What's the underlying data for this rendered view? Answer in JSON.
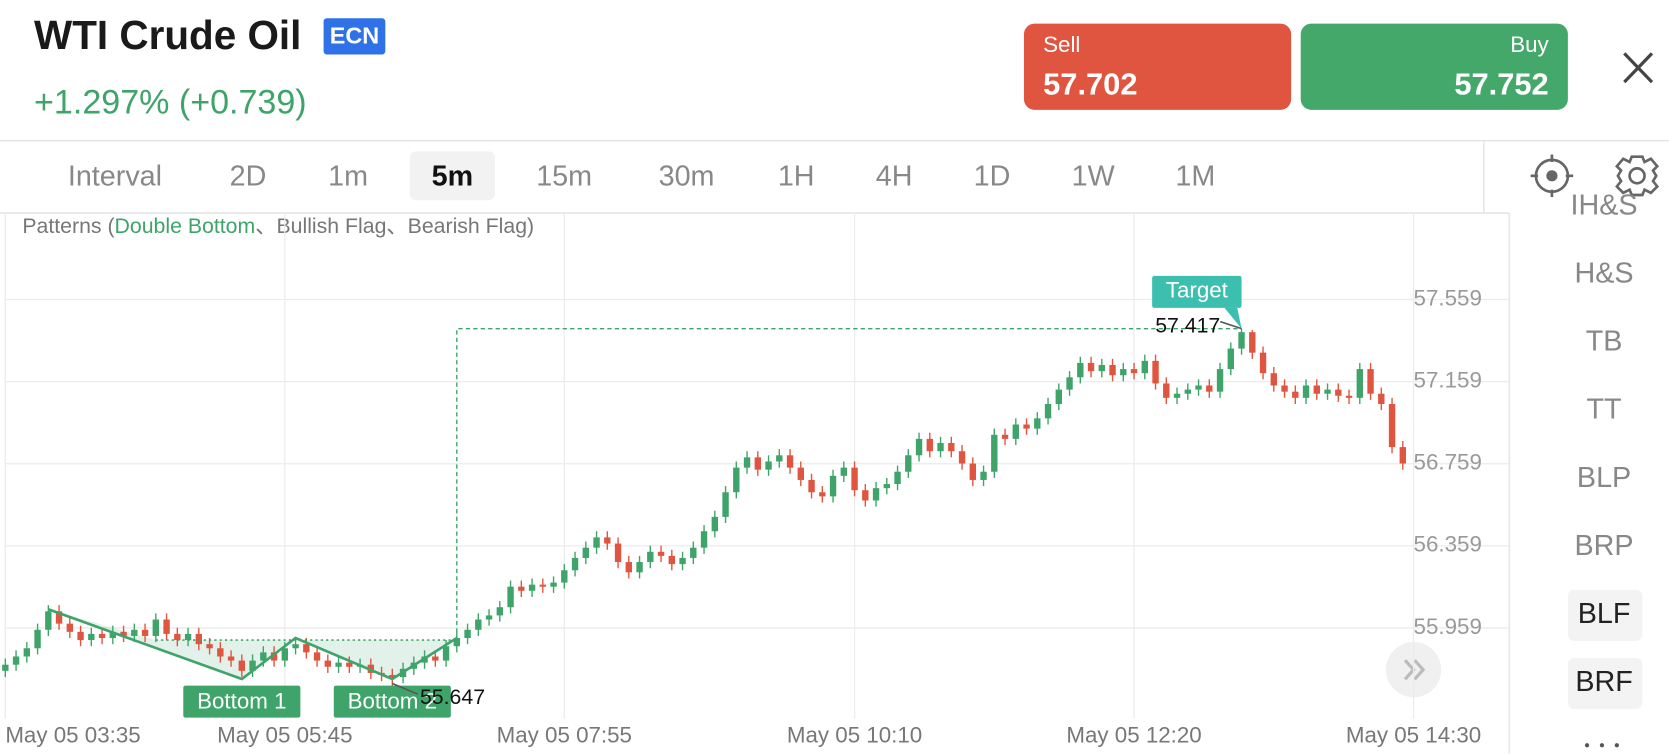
{
  "header": {
    "title": "WTI Crude Oil",
    "badge": "ECN",
    "change": "+1.297% (+0.739)",
    "sell": {
      "label": "Sell",
      "price": "57.702"
    },
    "buy": {
      "label": "Buy",
      "price": "57.752"
    }
  },
  "intervals": {
    "items": [
      "Interval",
      "2D",
      "1m",
      "5m",
      "15m",
      "30m",
      "1H",
      "4H",
      "1D",
      "1W",
      "1M"
    ],
    "active_index": 3
  },
  "pattern_menu": {
    "items": [
      "IH&S",
      "H&S",
      "TB",
      "TT",
      "BLP",
      "BRP",
      "BLF",
      "BRF"
    ],
    "highlighted": [
      6,
      7
    ]
  },
  "chart_data": {
    "type": "candlestick",
    "legend": [
      "Patterns (",
      "Double Bottom",
      "、Bullish Flag、Bearish Flag)"
    ],
    "open": [
      55.75,
      55.78,
      55.82,
      55.86,
      55.95,
      56.04,
      55.98,
      55.94,
      55.9,
      55.93,
      55.91,
      55.94,
      55.92,
      55.95,
      55.92,
      56.0,
      55.93,
      55.9,
      55.93,
      55.88,
      55.86,
      55.82,
      55.8,
      55.75,
      55.8,
      55.84,
      55.8,
      55.86,
      55.88,
      55.84,
      55.8,
      55.77,
      55.79,
      55.77,
      55.78,
      55.74,
      55.73,
      55.72,
      55.76,
      55.79,
      55.82,
      55.8,
      55.87,
      55.91,
      55.95,
      56.0,
      56.02,
      56.06,
      56.16,
      56.14,
      56.17,
      56.16,
      56.18,
      56.24,
      56.3,
      56.35,
      56.4,
      56.37,
      56.28,
      56.23,
      56.28,
      56.33,
      56.31,
      56.27,
      56.3,
      56.35,
      56.43,
      56.5,
      56.62,
      56.74,
      56.79,
      56.73,
      56.77,
      56.8,
      56.74,
      56.68,
      56.62,
      56.6,
      56.7,
      56.74,
      56.63,
      56.58,
      56.64,
      56.66,
      56.72,
      56.8,
      56.88,
      56.82,
      56.86,
      56.82,
      56.76,
      56.68,
      56.72,
      56.9,
      56.88,
      56.95,
      56.93,
      56.98,
      57.05,
      57.12,
      57.18,
      57.25,
      57.21,
      57.24,
      57.19,
      57.22,
      57.2,
      57.26,
      57.15,
      57.08,
      57.1,
      57.12,
      57.14,
      57.11,
      57.22,
      57.32,
      57.4,
      57.3,
      57.2,
      57.14,
      57.11,
      57.08,
      57.14,
      57.1,
      57.12,
      57.09,
      57.08,
      57.22,
      57.1,
      57.05,
      56.84
    ],
    "high": [
      55.81,
      55.85,
      55.89,
      55.98,
      56.07,
      56.07,
      56.01,
      55.97,
      55.96,
      55.96,
      55.97,
      55.97,
      55.98,
      55.98,
      56.03,
      56.03,
      55.96,
      55.96,
      55.96,
      55.91,
      55.89,
      55.85,
      55.83,
      55.83,
      55.87,
      55.87,
      55.89,
      55.91,
      55.91,
      55.87,
      55.83,
      55.82,
      55.82,
      55.81,
      55.81,
      55.77,
      55.76,
      55.79,
      55.82,
      55.85,
      55.85,
      55.9,
      55.94,
      55.98,
      56.03,
      56.05,
      56.09,
      56.19,
      56.19,
      56.2,
      56.2,
      56.21,
      56.27,
      56.33,
      56.38,
      56.43,
      56.43,
      56.4,
      56.31,
      56.31,
      56.36,
      56.36,
      56.34,
      56.33,
      56.38,
      56.46,
      56.53,
      56.65,
      56.77,
      56.82,
      56.82,
      56.8,
      56.83,
      56.83,
      56.77,
      56.71,
      56.65,
      56.73,
      56.77,
      56.77,
      56.66,
      56.67,
      56.69,
      56.75,
      56.83,
      56.91,
      56.91,
      56.89,
      56.89,
      56.85,
      56.79,
      56.75,
      56.93,
      56.93,
      56.98,
      56.98,
      57.01,
      57.08,
      57.15,
      57.21,
      57.28,
      57.28,
      57.27,
      57.27,
      57.25,
      57.25,
      57.29,
      57.29,
      57.18,
      57.13,
      57.15,
      57.17,
      57.17,
      57.25,
      57.35,
      57.417,
      57.41,
      57.33,
      57.23,
      57.17,
      57.14,
      57.17,
      57.17,
      57.15,
      57.15,
      57.12,
      57.25,
      57.25,
      57.13,
      57.08,
      56.87
    ],
    "low": [
      55.72,
      55.75,
      55.79,
      55.83,
      55.92,
      55.95,
      55.91,
      55.87,
      55.87,
      55.88,
      55.88,
      55.89,
      55.89,
      55.89,
      55.89,
      55.9,
      55.87,
      55.87,
      55.85,
      55.83,
      55.79,
      55.77,
      55.72,
      55.72,
      55.77,
      55.77,
      55.77,
      55.83,
      55.81,
      55.77,
      55.74,
      55.74,
      55.74,
      55.74,
      55.71,
      55.7,
      55.647,
      55.69,
      55.73,
      55.76,
      55.77,
      55.77,
      55.84,
      55.88,
      55.92,
      55.97,
      55.99,
      56.03,
      56.11,
      56.11,
      56.13,
      56.13,
      56.15,
      56.21,
      56.27,
      56.32,
      56.34,
      56.25,
      56.2,
      56.2,
      56.25,
      56.28,
      56.24,
      56.24,
      56.27,
      56.32,
      56.4,
      56.47,
      56.59,
      56.71,
      56.7,
      56.7,
      56.74,
      56.71,
      56.65,
      56.59,
      56.57,
      56.57,
      56.67,
      56.6,
      56.55,
      56.55,
      56.61,
      56.63,
      56.69,
      56.77,
      56.79,
      56.79,
      56.79,
      56.73,
      56.65,
      56.65,
      56.69,
      56.85,
      56.85,
      56.9,
      56.9,
      56.95,
      57.02,
      57.09,
      57.15,
      57.18,
      57.18,
      57.16,
      57.16,
      57.17,
      57.17,
      57.12,
      57.05,
      57.05,
      57.07,
      57.09,
      57.08,
      57.08,
      57.19,
      57.29,
      57.27,
      57.17,
      57.11,
      57.08,
      57.05,
      57.05,
      57.07,
      57.07,
      57.06,
      57.05,
      57.05,
      57.07,
      57.02,
      56.81,
      56.73
    ],
    "close": [
      55.78,
      55.82,
      55.86,
      55.95,
      56.04,
      55.98,
      55.94,
      55.9,
      55.93,
      55.91,
      55.94,
      55.92,
      55.95,
      55.92,
      56.0,
      55.93,
      55.9,
      55.93,
      55.88,
      55.86,
      55.82,
      55.8,
      55.75,
      55.8,
      55.84,
      55.8,
      55.86,
      55.88,
      55.84,
      55.8,
      55.77,
      55.79,
      55.77,
      55.78,
      55.74,
      55.73,
      55.72,
      55.76,
      55.79,
      55.82,
      55.8,
      55.87,
      55.91,
      55.95,
      56.0,
      56.02,
      56.06,
      56.16,
      56.14,
      56.17,
      56.16,
      56.18,
      56.24,
      56.3,
      56.35,
      56.4,
      56.37,
      56.28,
      56.23,
      56.28,
      56.33,
      56.31,
      56.27,
      56.3,
      56.35,
      56.43,
      56.5,
      56.62,
      56.74,
      56.79,
      56.73,
      56.77,
      56.8,
      56.74,
      56.68,
      56.62,
      56.6,
      56.7,
      56.74,
      56.63,
      56.58,
      56.64,
      56.66,
      56.72,
      56.8,
      56.88,
      56.82,
      56.86,
      56.82,
      56.76,
      56.68,
      56.72,
      56.9,
      56.88,
      56.95,
      56.93,
      56.98,
      57.05,
      57.12,
      57.18,
      57.25,
      57.21,
      57.24,
      57.19,
      57.22,
      57.2,
      57.26,
      57.15,
      57.08,
      57.1,
      57.12,
      57.14,
      57.11,
      57.22,
      57.32,
      57.4,
      57.3,
      57.2,
      57.14,
      57.11,
      57.08,
      57.14,
      57.1,
      57.12,
      57.09,
      57.08,
      57.22,
      57.1,
      57.05,
      56.84,
      56.76
    ],
    "up_color": "#3fa46a",
    "down_color": "#e0553f",
    "ylim": [
      55.517,
      57.98
    ],
    "yticks": [
      55.959,
      56.359,
      56.759,
      57.159,
      57.559
    ],
    "xlim": [
      0,
      131
    ],
    "xticks": [
      {
        "value": 0,
        "label": "May 05 03:35"
      },
      {
        "value": 26,
        "label": "May 05 05:45"
      },
      {
        "value": 52,
        "label": "May 05 07:55"
      },
      {
        "value": 79,
        "label": "May 05 10:10"
      },
      {
        "value": 105,
        "label": "May 05 12:20"
      },
      {
        "value": 131,
        "label": "May 05 14:30"
      }
    ],
    "grid": true,
    "pattern": {
      "points_x": [
        4,
        22,
        27,
        36,
        42
      ],
      "points_y": [
        56.05,
        55.71,
        55.91,
        55.71,
        55.91
      ],
      "neckline": 55.9,
      "neckline_x": [
        14,
        42
      ],
      "target": 57.417,
      "target_x": [
        42,
        115
      ],
      "target_label": "Target",
      "bottom_labels": [
        "Bottom 1",
        "Bottom 2"
      ],
      "bottom_x": [
        22,
        36
      ],
      "low": 55.647,
      "low_x": 36,
      "color": "#3fa46a",
      "target_color": "#3dbfb0"
    }
  }
}
